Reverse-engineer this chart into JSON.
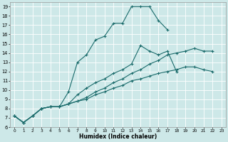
{
  "xlabel": "Humidex (Indice chaleur)",
  "background_color": "#cde8e8",
  "line_color": "#1a6b6b",
  "grid_color": "#ffffff",
  "xlim": [
    -0.5,
    23.5
  ],
  "ylim": [
    6,
    19.5
  ],
  "xticks": [
    0,
    1,
    2,
    3,
    4,
    5,
    6,
    7,
    8,
    9,
    10,
    11,
    12,
    13,
    14,
    15,
    16,
    17,
    18,
    19,
    20,
    21,
    22,
    23
  ],
  "yticks": [
    6,
    7,
    8,
    9,
    10,
    11,
    12,
    13,
    14,
    15,
    16,
    17,
    18,
    19
  ],
  "curves": [
    [
      7.2,
      6.5,
      7.2,
      8.0,
      8.2,
      8.2,
      9.8,
      13.0,
      13.8,
      15.4,
      15.8,
      17.2,
      17.2,
      19.0,
      19.0,
      19.0,
      17.5,
      16.5,
      null,
      null,
      null,
      null,
      null,
      null
    ],
    [
      7.2,
      6.5,
      7.2,
      8.0,
      8.2,
      8.2,
      8.5,
      9.5,
      10.2,
      10.8,
      11.2,
      11.8,
      12.2,
      12.8,
      14.8,
      14.2,
      13.8,
      14.2,
      12.0,
      null,
      null,
      null,
      null,
      null
    ],
    [
      7.2,
      6.5,
      7.2,
      8.0,
      8.2,
      8.2,
      8.5,
      8.8,
      9.2,
      9.8,
      10.2,
      10.8,
      11.2,
      11.8,
      12.2,
      12.8,
      13.2,
      13.8,
      14.0,
      14.2,
      14.5,
      14.2,
      14.2,
      null
    ],
    [
      7.2,
      6.5,
      7.2,
      8.0,
      8.2,
      8.2,
      8.5,
      8.8,
      9.0,
      9.5,
      9.8,
      10.2,
      10.5,
      11.0,
      11.2,
      11.5,
      11.8,
      12.0,
      12.2,
      12.5,
      12.5,
      12.2,
      12.0,
      null
    ]
  ]
}
